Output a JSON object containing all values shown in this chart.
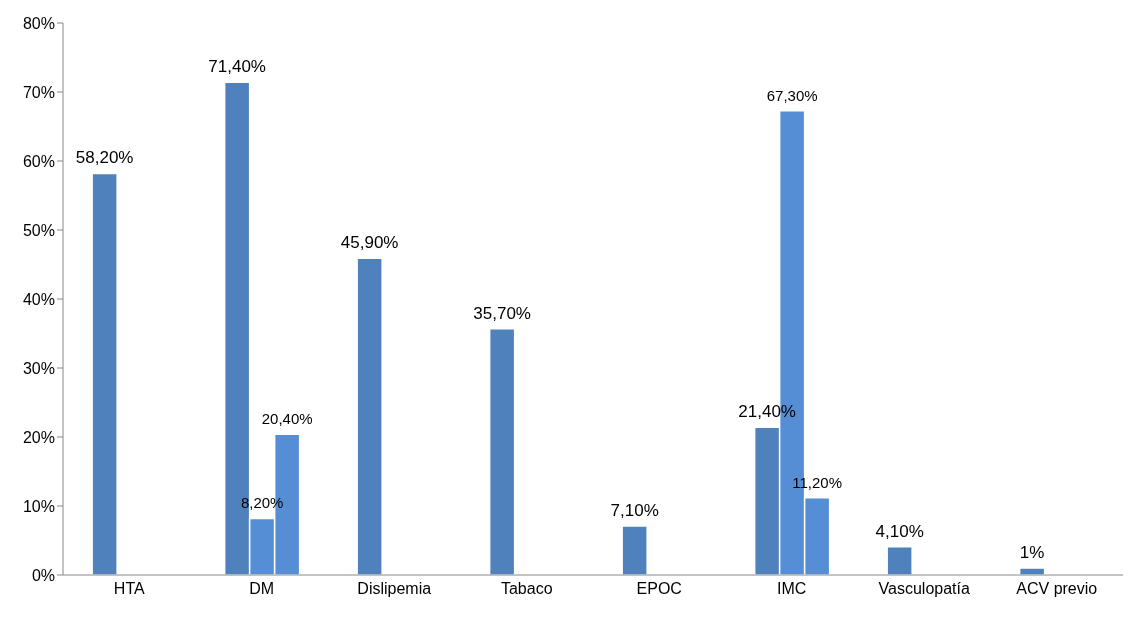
{
  "chart_data": {
    "type": "bar",
    "categories": [
      "HTA",
      "DM",
      "Dislipemia",
      "Tabaco",
      "EPOC",
      "IMC",
      "Vasculopatía",
      "ACV previo"
    ],
    "series": [
      {
        "color": "#4f81bd",
        "values": [
          58.2,
          71.4,
          45.9,
          35.7,
          7.1,
          21.4,
          4.1,
          1
        ],
        "value_labels": [
          "58,20%",
          "71,40%",
          "45,90%",
          "35,70%",
          "7,10%",
          "21,40%",
          "4,10%",
          "1%"
        ]
      },
      {
        "color": "#558ed5",
        "values": [
          null,
          8.2,
          null,
          null,
          null,
          67.3,
          null,
          null
        ],
        "value_labels": [
          null,
          "8,20%",
          null,
          null,
          null,
          "67,30%",
          null,
          null
        ]
      },
      {
        "color": "#558ed5",
        "values": [
          null,
          20.4,
          null,
          null,
          null,
          11.2,
          null,
          null
        ],
        "value_labels": [
          null,
          "20,40%",
          null,
          null,
          null,
          "11,20%",
          null,
          null
        ]
      }
    ],
    "ylim": [
      0,
      80
    ],
    "yticks": [
      {
        "value": 0,
        "label": "0%"
      },
      {
        "value": 10,
        "label": "10%"
      },
      {
        "value": 20,
        "label": "20%"
      },
      {
        "value": 30,
        "label": "30%"
      },
      {
        "value": 40,
        "label": "40%"
      },
      {
        "value": 50,
        "label": "50%"
      },
      {
        "value": 60,
        "label": "60%"
      },
      {
        "value": 70,
        "label": "70%"
      },
      {
        "value": 80,
        "label": "80%"
      }
    ],
    "grid": false,
    "legend": false
  }
}
